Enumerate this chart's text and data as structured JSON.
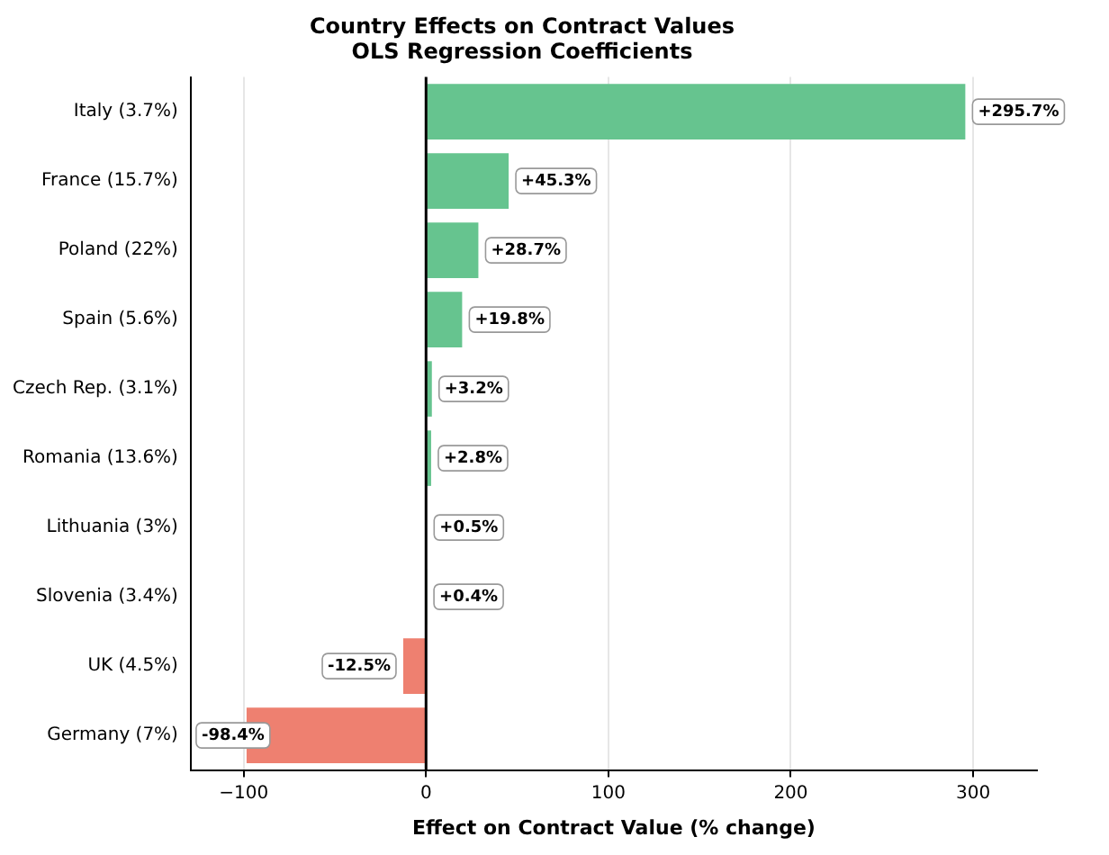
{
  "chart_data": {
    "type": "bar",
    "orientation": "horizontal",
    "title": "Country Effects on Contract Values",
    "subtitle": "OLS Regression Coefficients",
    "xlabel": "Effect on Contract Value (% change)",
    "categories": [
      "Italy (3.7%)",
      "France (15.7%)",
      "Poland (22%)",
      "Spain (5.6%)",
      "Czech Rep. (3.1%)",
      "Romania (13.6%)",
      "Lithuania (3%)",
      "Slovenia (3.4%)",
      "UK (4.5%)",
      "Germany (7%)"
    ],
    "values": [
      295.7,
      45.3,
      28.7,
      19.8,
      3.2,
      2.8,
      0.5,
      0.4,
      -12.5,
      -98.4
    ],
    "colors": [
      "#66c48f",
      "#66c48f",
      "#66c48f",
      "#66c48f",
      "#66c48f",
      "#66c48f",
      "#66c48f",
      "#66c48f",
      "#ee8070",
      "#ee8070"
    ],
    "value_labels": [
      "+295.7%",
      "+45.3%",
      "+28.7%",
      "+19.8%",
      "+3.2%",
      "+2.8%",
      "+0.5%",
      "+0.4%",
      "-12.5%",
      "-98.4%"
    ],
    "xlim": [
      -129,
      335
    ],
    "xticks": [
      -100,
      0,
      100,
      200,
      300
    ],
    "grid": "x",
    "ref_lines": [
      {
        "axis": "x",
        "value": 0,
        "color": "#000000"
      }
    ]
  }
}
